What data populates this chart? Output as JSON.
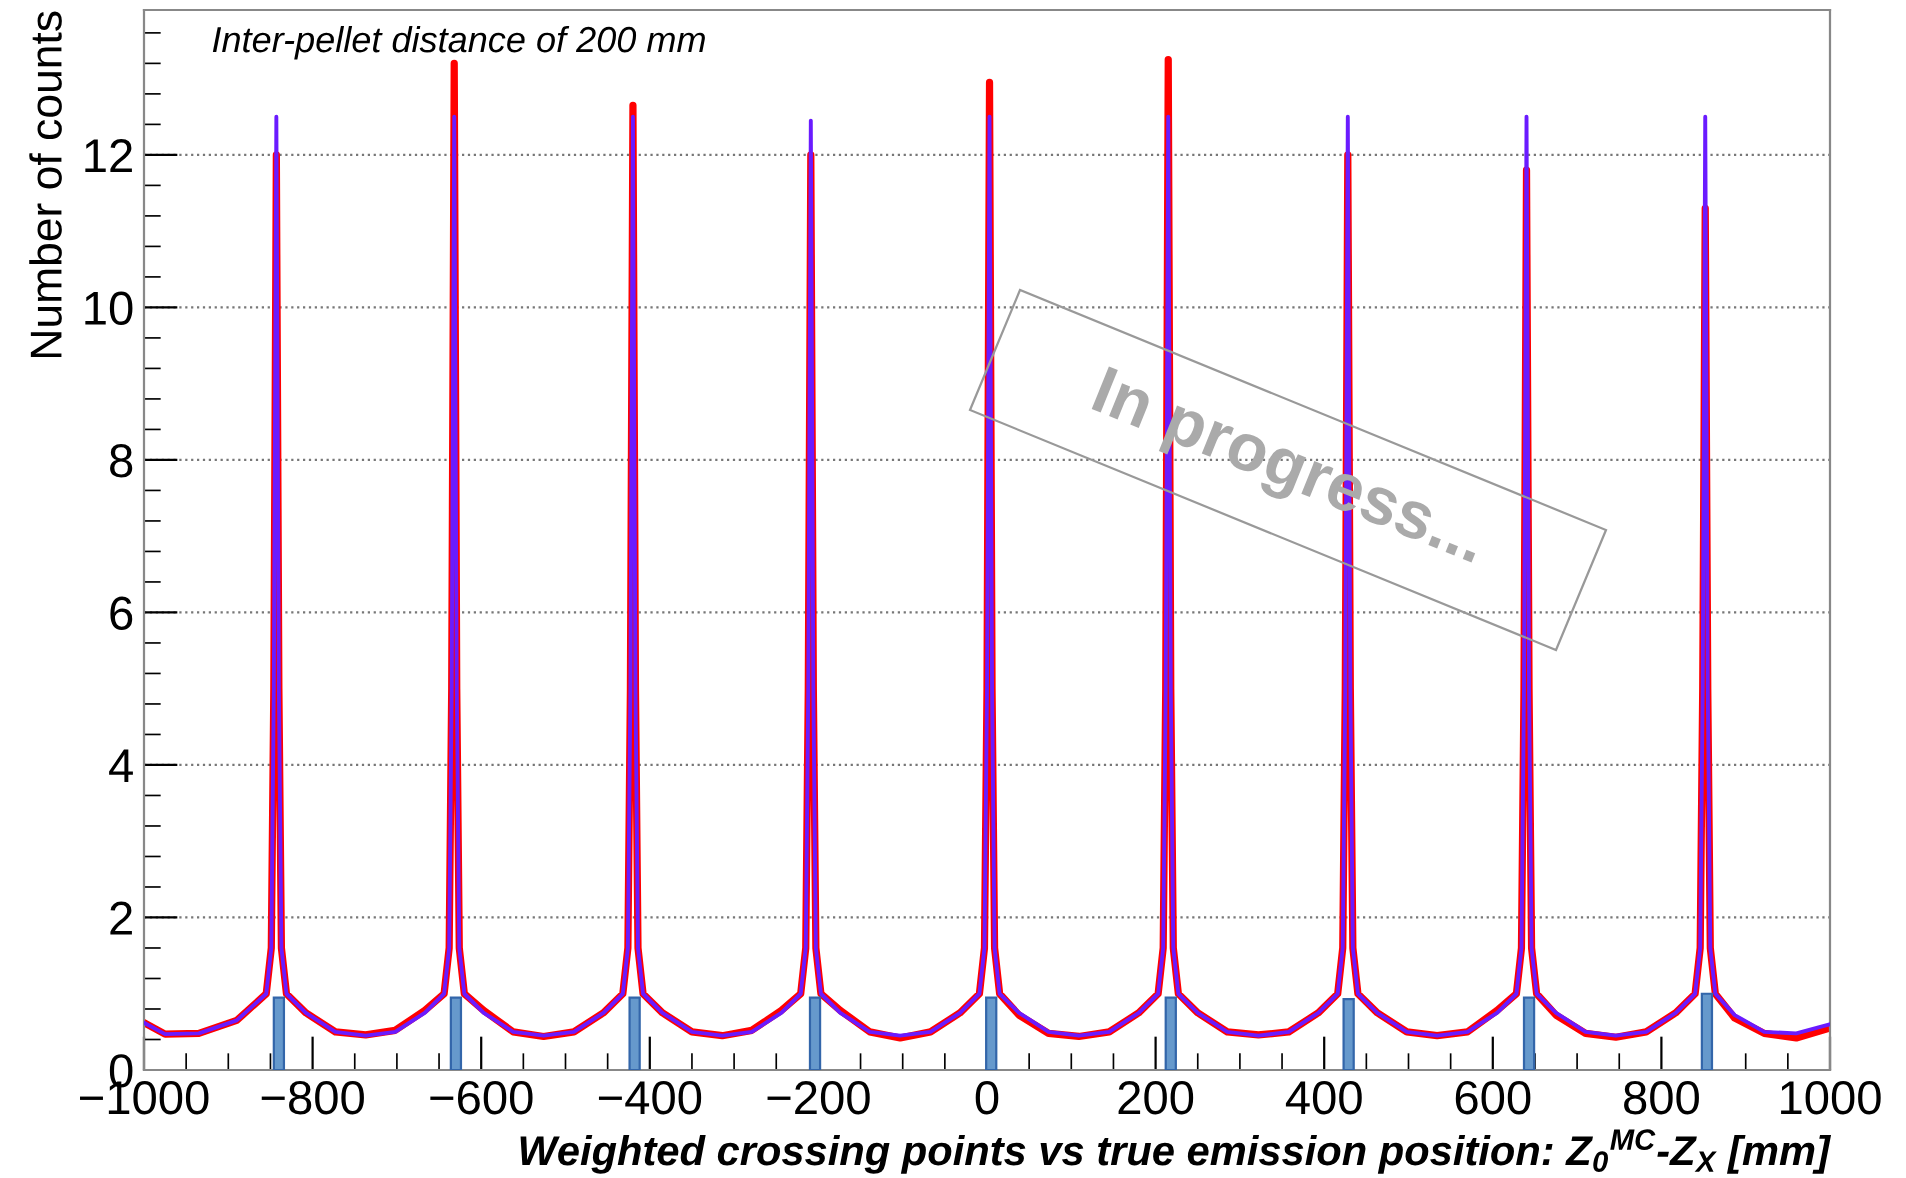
{
  "chart_data": {
    "type": "line",
    "xlabel": "Weighted crossing points vs true emission position: Z$_{0}$$^{MC}$-Z$_{X}$ [mm]",
    "ylabel": "Number of counts",
    "annotations": [
      "Inter-pellet distance of 200 mm",
      "In progress..."
    ],
    "x": [
      -1000,
      -975,
      -935,
      -890,
      -855,
      -849,
      -846,
      -843,
      -840,
      -837,
      -831,
      -808,
      -773,
      -737,
      -702,
      -667,
      -644,
      -638,
      -635,
      -632,
      -629,
      -626,
      -620,
      -597,
      -562,
      -526,
      -490,
      -455,
      -432,
      -426,
      -423,
      -420,
      -417,
      -414,
      -408,
      -385,
      -350,
      -314,
      -279,
      -244,
      -221,
      -215,
      -212,
      -209,
      -206,
      -203,
      -197,
      -174,
      -139,
      -103,
      -67,
      -32,
      -9,
      -3,
      0,
      3,
      6,
      9,
      15,
      38,
      73,
      109,
      145,
      180,
      203,
      209,
      212,
      215,
      218,
      221,
      227,
      250,
      285,
      322,
      358,
      393,
      416,
      422,
      425,
      428,
      431,
      434,
      440,
      463,
      498,
      534,
      570,
      605,
      628,
      634,
      637,
      640,
      643,
      646,
      652,
      675,
      710,
      746,
      782,
      817,
      840,
      846,
      849,
      852,
      855,
      858,
      864,
      887,
      922,
      960,
      1000
    ],
    "series": [
      {
        "color": "#ff0000",
        "values": [
          0.62,
          0.47,
          0.48,
          0.65,
          1.0,
          1.6,
          5,
          12.0,
          5,
          1.6,
          1.0,
          0.75,
          0.5,
          0.46,
          0.52,
          0.78,
          1.0,
          1.6,
          5,
          13.2,
          5,
          1.6,
          1.0,
          0.78,
          0.5,
          0.44,
          0.5,
          0.75,
          1.0,
          1.6,
          5,
          12.65,
          5,
          1.6,
          1.0,
          0.75,
          0.5,
          0.45,
          0.52,
          0.78,
          1.0,
          1.6,
          5,
          12.0,
          5,
          1.6,
          1.0,
          0.78,
          0.5,
          0.42,
          0.5,
          0.75,
          1.0,
          1.6,
          5,
          12.95,
          5,
          1.6,
          1.0,
          0.72,
          0.48,
          0.44,
          0.5,
          0.75,
          1.0,
          1.6,
          5,
          13.25,
          5,
          1.6,
          1.0,
          0.75,
          0.5,
          0.46,
          0.5,
          0.75,
          1.0,
          1.6,
          5,
          12.0,
          5,
          1.6,
          1.0,
          0.75,
          0.5,
          0.45,
          0.5,
          0.78,
          1.0,
          1.6,
          5,
          11.8,
          5,
          1.6,
          1.0,
          0.72,
          0.48,
          0.43,
          0.5,
          0.75,
          1.0,
          1.6,
          5,
          11.3,
          5,
          1.6,
          1.0,
          0.68,
          0.48,
          0.42,
          0.55
        ]
      },
      {
        "color": "#6a1bff",
        "values": [
          0.62,
          0.47,
          0.48,
          0.65,
          1.0,
          1.6,
          5,
          12.5,
          5,
          1.6,
          1.0,
          0.75,
          0.5,
          0.45,
          0.5,
          0.75,
          1.0,
          1.6,
          5,
          12.5,
          5,
          1.6,
          1.0,
          0.75,
          0.5,
          0.45,
          0.5,
          0.75,
          1.0,
          1.6,
          5,
          12.5,
          5,
          1.6,
          1.0,
          0.75,
          0.5,
          0.45,
          0.5,
          0.75,
          1.0,
          1.6,
          5,
          12.45,
          5,
          1.6,
          1.0,
          0.75,
          0.5,
          0.45,
          0.5,
          0.75,
          1.0,
          1.6,
          5,
          12.5,
          5,
          1.6,
          1.0,
          0.75,
          0.5,
          0.45,
          0.5,
          0.75,
          1.0,
          1.6,
          5,
          12.5,
          5,
          1.6,
          1.0,
          0.75,
          0.5,
          0.45,
          0.5,
          0.75,
          1.0,
          1.6,
          5,
          12.5,
          5,
          1.6,
          1.0,
          0.75,
          0.5,
          0.45,
          0.5,
          0.75,
          1.0,
          1.6,
          5,
          12.5,
          5,
          1.6,
          1.0,
          0.75,
          0.5,
          0.45,
          0.5,
          0.75,
          1.0,
          1.6,
          5,
          12.5,
          5,
          1.6,
          1.0,
          0.72,
          0.5,
          0.48,
          0.6
        ]
      },
      {
        "type": "bar",
        "color": "#6699cc",
        "x": [
          -840,
          -630,
          -418,
          -204,
          5,
          218,
          429,
          643,
          854
        ],
        "values": [
          0.95,
          0.95,
          0.95,
          0.95,
          0.95,
          0.95,
          0.93,
          0.95,
          1.0
        ]
      }
    ],
    "xlim": [
      -1000,
      1000
    ],
    "xticks": [
      -1000,
      -800,
      -600,
      -400,
      -200,
      0,
      200,
      400,
      600,
      800,
      1000
    ],
    "ylim": [
      0,
      13.9
    ],
    "yticks": [
      0,
      2,
      4,
      6,
      8,
      10,
      12
    ],
    "grid": "y",
    "line_style": "solid",
    "legend": false
  }
}
